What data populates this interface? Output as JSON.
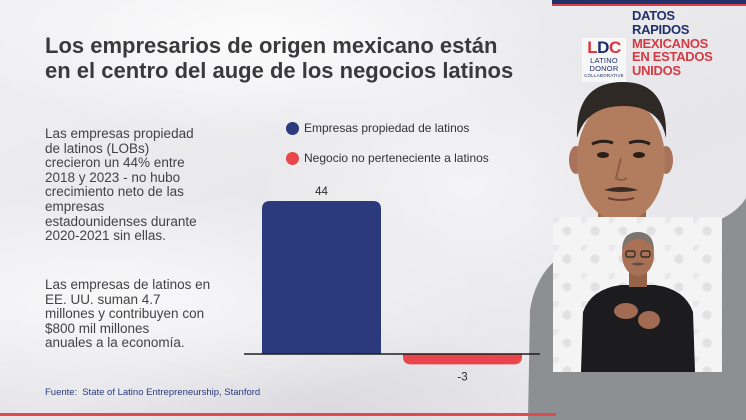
{
  "slide": {
    "title_lines": [
      "Los empresarios de origen mexicano están",
      "en el centro del auge de los negocios latinos"
    ],
    "paragraph1_lines": [
      "Las empresas propiedad",
      "de latinos (LOBs)",
      "crecieron un 44% entre",
      "2018 y 2023 - no hubo",
      "crecimiento neto de las",
      "empresas",
      "estadounidenses durante",
      "2020-2021 sin ellas."
    ],
    "paragraph2_lines": [
      "Las empresas de latinos en",
      "EE. UU. suman 4.7",
      "millones y contribuyen con",
      "$800 mil millones",
      "anuales a la economía."
    ],
    "source_label": "Fuente:",
    "source_text": "State of Latino Entrepreneurship, Stanford"
  },
  "branding": {
    "logo_mark": [
      "L",
      "D",
      "C"
    ],
    "logo_line1": "LATINO",
    "logo_line2": "DONOR",
    "logo_line3": "COLLABORATIVE",
    "badge_primary_lines": [
      "DATOS",
      "RAPIDOS"
    ],
    "badge_accent_lines": [
      "MEXICANOS",
      "EN ESTADOS",
      "UNIDOS"
    ]
  },
  "colors": {
    "navy": "#2a3a7c",
    "red": "#e8464b",
    "text": "#3a3a3c"
  },
  "chart_data": {
    "type": "bar",
    "categories": [
      "Empresas propiedad de latinos",
      "Negocio no perteneciente a latinos"
    ],
    "values": [
      44,
      -3
    ],
    "colors": [
      "#2a3a7c",
      "#e8464b"
    ],
    "legend": "top",
    "grid": false,
    "xlabel": "",
    "ylabel": ""
  }
}
